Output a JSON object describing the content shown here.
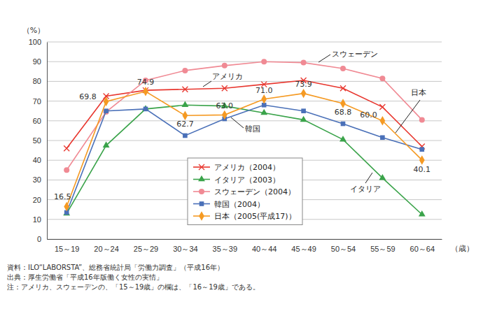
{
  "chart_data": {
    "type": "line",
    "y_label": "（%）",
    "x_label": "（歳）",
    "categories": [
      "15～19",
      "20～24",
      "25～29",
      "30～34",
      "35～39",
      "40～44",
      "45～49",
      "50～54",
      "55～59",
      "60～64"
    ],
    "ylim": [
      0,
      100
    ],
    "yticks": [
      0,
      10,
      20,
      30,
      40,
      50,
      60,
      70,
      80,
      90,
      100
    ],
    "grid": true,
    "legend": "center",
    "series": [
      {
        "name": "アメリカ（2004）",
        "color": "#e8362e",
        "marker": "x",
        "values": [
          46,
          72.5,
          75.5,
          76,
          76.5,
          78.5,
          80.5,
          76.5,
          67,
          47
        ]
      },
      {
        "name": "イタリア（2003）",
        "color": "#3aa34a",
        "marker": "triangle",
        "values": [
          13,
          47.5,
          66,
          68,
          67.5,
          64,
          60.5,
          50.5,
          31,
          12.5
        ]
      },
      {
        "name": "スウェーデン（2004）",
        "color": "#f08a94",
        "marker": "circle",
        "values": [
          35,
          64.5,
          80.5,
          85.5,
          88,
          90,
          89.5,
          86.5,
          81.5,
          60.5
        ]
      },
      {
        "name": "韓国（2004）",
        "color": "#4a70b8",
        "marker": "square",
        "values": [
          13.5,
          65,
          66,
          52.5,
          61,
          68,
          65,
          58.5,
          51.5,
          45.5
        ]
      },
      {
        "name": "日本（2005(平成17)）",
        "color": "#f59a23",
        "marker": "diamond",
        "data_labels": true,
        "values": [
          16.5,
          69.8,
          74.9,
          62.7,
          63.0,
          71.0,
          73.9,
          68.8,
          60.0,
          40.1
        ],
        "value_labels": [
          "16.5",
          "69.8",
          "74.9",
          "62.7",
          "63.0",
          "71.0",
          "73.9",
          "68.8",
          "60.0",
          "40.1"
        ]
      }
    ],
    "annotations": [
      "スウェーデン",
      "アメリカ",
      "日本",
      "韓国",
      "イタリア"
    ],
    "notes": [
      "資料：ILO“LABORSTA”、総務省統計局「労働力調査」（平成16年）",
      "出典：厚生労働省「平成16年版働く女性の実情」",
      "注：アメリカ、スウェーデンの、「15～19歳」の欄は、「16～19歳」である。"
    ]
  }
}
